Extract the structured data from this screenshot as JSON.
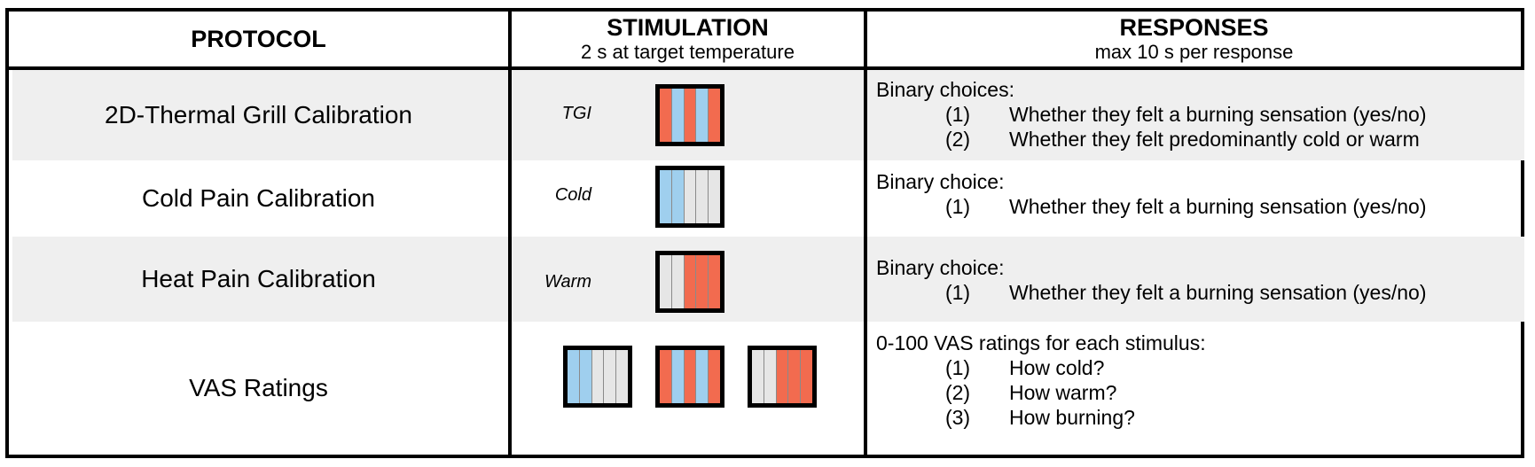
{
  "header": {
    "protocol": "PROTOCOL",
    "stimulation": "STIMULATION",
    "stimulation_sub": "2 s at target temperature",
    "responses": "RESPONSES",
    "responses_sub": "max 10 s per response"
  },
  "colors": {
    "cold": "#9fcfee",
    "warm": "#f26b4f",
    "neutral": "#e6e6e6",
    "row_band": "#efefef"
  },
  "rows": [
    {
      "protocol": "2D-Thermal Grill Calibration",
      "stim_label": "TGI",
      "grills": [
        [
          "warm",
          "cold",
          "warm",
          "cold",
          "warm"
        ]
      ],
      "resp_title": "Binary choices:",
      "items": [
        {
          "num": "(1)",
          "text": "Whether they felt a burning sensation (yes/no)"
        },
        {
          "num": "(2)",
          "text": "Whether they felt predominantly cold or warm"
        }
      ]
    },
    {
      "protocol": "Cold Pain Calibration",
      "stim_label": "Cold",
      "grills": [
        [
          "cold",
          "cold",
          "neutral",
          "neutral",
          "neutral"
        ]
      ],
      "resp_title": "Binary choice:",
      "items": [
        {
          "num": "(1)",
          "text": "Whether they felt a burning sensation (yes/no)"
        }
      ]
    },
    {
      "protocol": "Heat Pain Calibration",
      "stim_label": "Warm",
      "grills": [
        [
          "neutral",
          "neutral",
          "warm",
          "warm",
          "warm"
        ]
      ],
      "resp_title": "Binary choice:",
      "items": [
        {
          "num": "(1)",
          "text": "Whether they felt a burning sensation (yes/no)"
        }
      ]
    },
    {
      "protocol": "VAS Ratings",
      "stim_label": "",
      "grills": [
        [
          "cold",
          "cold",
          "neutral",
          "neutral",
          "neutral"
        ],
        [
          "warm",
          "cold",
          "warm",
          "cold",
          "warm"
        ],
        [
          "neutral",
          "neutral",
          "warm",
          "warm",
          "warm"
        ]
      ],
      "resp_title": "0-100 VAS ratings for each stimulus:",
      "items": [
        {
          "num": "(1)",
          "text": "How cold?"
        },
        {
          "num": "(2)",
          "text": "How warm?"
        },
        {
          "num": "(3)",
          "text": "How burning?"
        }
      ]
    }
  ]
}
